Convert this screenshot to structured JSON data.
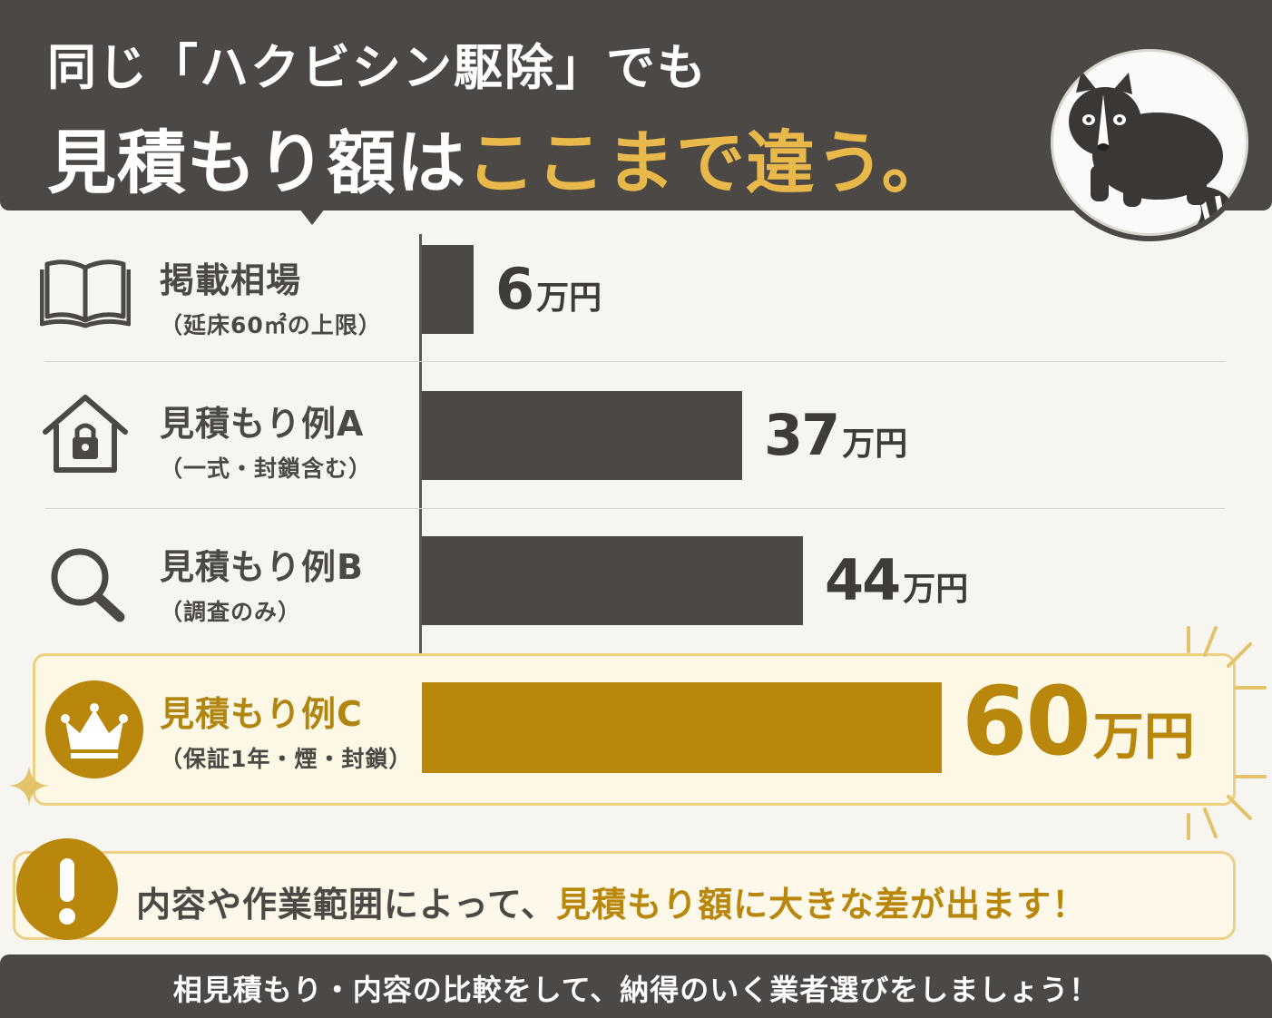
{
  "header": {
    "line1": "同じ「ハクビシン駆除」でも",
    "line2_prefix": "見積もり額は",
    "line2_accent": "ここまで違う。",
    "accent_color": "#e8b94a",
    "animal_icon": "civet-icon"
  },
  "chart_data": {
    "type": "bar",
    "orientation": "horizontal",
    "unit": "万円",
    "xlim": [
      0,
      75
    ],
    "categories": [
      "掲載相場",
      "見積もり例A",
      "見積もり例B",
      "見積もり例C"
    ],
    "sublabels": [
      "（延床60㎡の上限）",
      "（一式・封鎖含む）",
      "（調査のみ）",
      "（保証1年・煙・封鎖）"
    ],
    "values": [
      6,
      37,
      44,
      60
    ],
    "value_labels": [
      "6",
      "37",
      "44",
      "60"
    ],
    "icons": [
      "book-icon",
      "house-lock-icon",
      "magnifier-icon",
      "crown-icon"
    ],
    "highlight_index": 3,
    "colors": {
      "bar": "#4b4845",
      "highlight": "#b8870b"
    }
  },
  "notice": {
    "icon": "exclamation-icon",
    "text_prefix": "内容や作業範囲によって、",
    "text_accent": "見積もり額に大きな差が出ます！"
  },
  "footer": {
    "text": "相見積もり・内容の比較をして、納得のいく業者選びをしましょう！"
  }
}
